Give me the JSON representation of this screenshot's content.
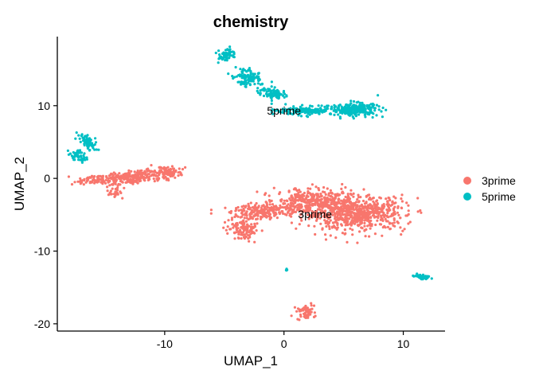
{
  "chart_data": {
    "type": "scatter",
    "title": "chemistry",
    "xlabel": "UMAP_1",
    "ylabel": "UMAP_2",
    "xlim": [
      -19,
      13.5
    ],
    "ylim": [
      -21,
      19.5
    ],
    "xticks": [
      -10,
      0,
      10
    ],
    "yticks": [
      -20,
      -10,
      0,
      10
    ],
    "grid": false,
    "legend_position": "right",
    "series": [
      {
        "name": "3prime",
        "color": "#F8766D",
        "clusters": [
          {
            "cx": -12.5,
            "cy": 0.2,
            "sx": 2.2,
            "sy": 0.6,
            "n": 260,
            "tilt": 0.18
          },
          {
            "cx": -16.0,
            "cy": -0.2,
            "sx": 1.0,
            "sy": 0.35,
            "n": 60,
            "tilt": 0.0
          },
          {
            "cx": -14.2,
            "cy": -1.9,
            "sx": 0.5,
            "sy": 0.5,
            "n": 30,
            "tilt": -0.5
          },
          {
            "cx": -9.8,
            "cy": 0.9,
            "sx": 0.6,
            "sy": 0.5,
            "n": 70,
            "tilt": 0.0
          },
          {
            "cx": 6.0,
            "cy": -4.8,
            "sx": 2.8,
            "sy": 1.6,
            "n": 700,
            "tilt": 0.0
          },
          {
            "cx": 2.5,
            "cy": -3.2,
            "sx": 2.2,
            "sy": 1.1,
            "n": 320,
            "tilt": -0.15
          },
          {
            "cx": -1.5,
            "cy": -4.5,
            "sx": 2.0,
            "sy": 0.7,
            "n": 240,
            "tilt": 0.1
          },
          {
            "cx": -3.4,
            "cy": -7.0,
            "sx": 0.9,
            "sy": 0.9,
            "n": 110,
            "tilt": 0.6
          },
          {
            "cx": 1.8,
            "cy": -18.4,
            "sx": 0.5,
            "sy": 0.7,
            "n": 55,
            "tilt": 0.0
          }
        ]
      },
      {
        "name": "5prime",
        "color": "#00BFC4",
        "clusters": [
          {
            "cx": -4.8,
            "cy": 17.0,
            "sx": 0.5,
            "sy": 0.6,
            "n": 60,
            "tilt": -0.6
          },
          {
            "cx": -3.0,
            "cy": 14.0,
            "sx": 0.8,
            "sy": 0.8,
            "n": 110,
            "tilt": -0.7
          },
          {
            "cx": -1.0,
            "cy": 11.7,
            "sx": 0.8,
            "sy": 0.5,
            "n": 90,
            "tilt": -0.4
          },
          {
            "cx": 2.5,
            "cy": 9.3,
            "sx": 2.0,
            "sy": 0.4,
            "n": 180,
            "tilt": 0.0
          },
          {
            "cx": 6.0,
            "cy": 9.5,
            "sx": 1.3,
            "sy": 0.6,
            "n": 240,
            "tilt": 0.0
          },
          {
            "cx": -16.5,
            "cy": 5.0,
            "sx": 0.4,
            "sy": 0.8,
            "n": 70,
            "tilt": 0.4
          },
          {
            "cx": -17.2,
            "cy": 3.0,
            "sx": 0.4,
            "sy": 0.6,
            "n": 50,
            "tilt": 0.3
          },
          {
            "cx": 11.5,
            "cy": -13.5,
            "sx": 0.5,
            "sy": 0.2,
            "n": 30,
            "tilt": -0.3
          },
          {
            "cx": 0.2,
            "cy": -12.6,
            "sx": 0.08,
            "sy": 0.08,
            "n": 5,
            "tilt": 0.0
          }
        ]
      }
    ],
    "annotations": [
      {
        "text": "5prime",
        "x": 0.0,
        "y": 9.3
      },
      {
        "text": "3prime",
        "x": 2.6,
        "y": -4.9
      }
    ]
  }
}
